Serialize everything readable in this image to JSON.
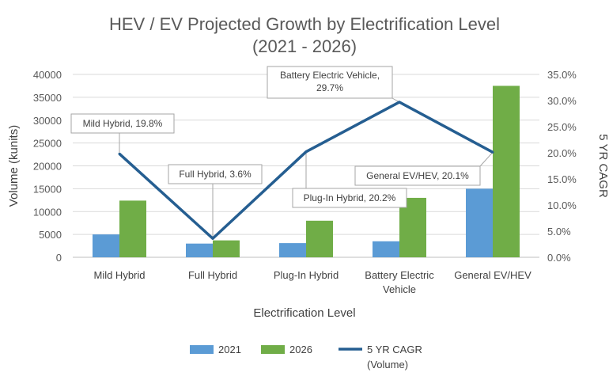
{
  "chart_data": {
    "type": "bar",
    "title_lines": [
      "HEV / EV Projected Growth by Electrification Level",
      "(2021 - 2026)"
    ],
    "xlabel": "Electrification Level",
    "ylabel": "Volume (kunits)",
    "y2label": "5 YR CAGR",
    "categories": [
      [
        "Mild Hybrid"
      ],
      [
        "Full Hybrid"
      ],
      [
        "Plug-In Hybrid"
      ],
      [
        "Battery Electric",
        "Vehicle"
      ],
      [
        "General EV/HEV"
      ]
    ],
    "ylim": [
      0,
      40000
    ],
    "yticks": [
      0,
      5000,
      10000,
      15000,
      20000,
      25000,
      30000,
      35000,
      40000
    ],
    "y2lim": [
      0,
      35
    ],
    "y2ticks": [
      "0.0%",
      "5.0%",
      "10.0%",
      "15.0%",
      "20.0%",
      "25.0%",
      "30.0%",
      "35.0%"
    ],
    "series": [
      {
        "name": "2021",
        "kind": "bar",
        "color": "#5b9bd5",
        "values": [
          5000,
          3000,
          3100,
          3500,
          15000
        ]
      },
      {
        "name": "2026",
        "kind": "bar",
        "color": "#70ad47",
        "values": [
          12400,
          3700,
          8000,
          13000,
          37500
        ]
      },
      {
        "name": "5 YR CAGR",
        "kind": "line",
        "axis": "y2",
        "color": "#255e91",
        "values": [
          19.8,
          3.6,
          20.2,
          29.7,
          20.1
        ]
      }
    ],
    "annotations": [
      {
        "lines": [
          "Mild Hybrid, 19.8%"
        ],
        "point": 0
      },
      {
        "lines": [
          "Full Hybrid, 3.6%"
        ],
        "point": 1
      },
      {
        "lines": [
          "Plug-In Hybrid, 20.2%"
        ],
        "point": 2
      },
      {
        "lines": [
          "Battery Electric Vehicle,",
          "29.7%"
        ],
        "point": 3
      },
      {
        "lines": [
          "General EV/HEV, 20.1%"
        ],
        "point": 4
      }
    ],
    "legend": [
      {
        "label": [
          "2021"
        ],
        "kind": "bar",
        "color": "#5b9bd5"
      },
      {
        "label": [
          "2026"
        ],
        "kind": "bar",
        "color": "#70ad47"
      },
      {
        "label": [
          "5 YR CAGR",
          "(Volume)"
        ],
        "kind": "line",
        "color": "#255e91"
      }
    ],
    "grid": true,
    "legend_position": "bottom"
  }
}
